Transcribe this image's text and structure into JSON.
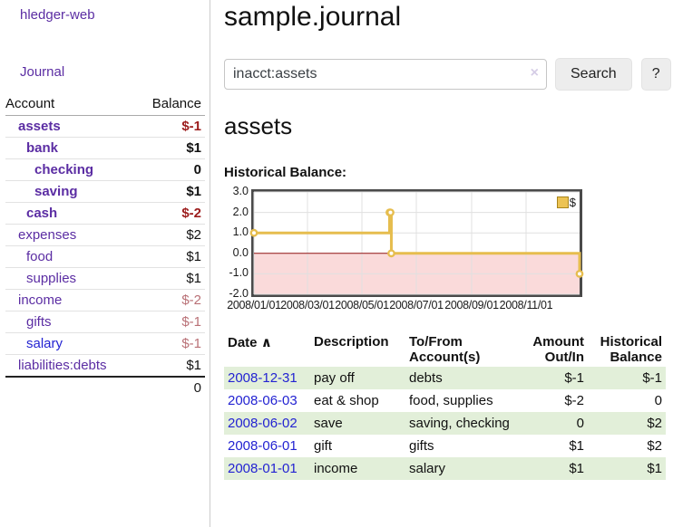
{
  "app": {
    "brand": "hledger-web"
  },
  "sidebar": {
    "nav": {
      "journal": "Journal"
    },
    "accounts_table": {
      "headers": {
        "account": "Account",
        "balance": "Balance"
      },
      "accounts": [
        {
          "name": "assets",
          "level": 1,
          "in_query": true,
          "balance": "$-1",
          "balance_tone": "neg-strong",
          "link_tone": ""
        },
        {
          "name": "bank",
          "level": 2,
          "in_query": true,
          "balance": "$1",
          "balance_tone": "",
          "link_tone": ""
        },
        {
          "name": "checking",
          "level": 3,
          "in_query": true,
          "balance": "0",
          "balance_tone": "",
          "link_tone": ""
        },
        {
          "name": "saving",
          "level": 3,
          "in_query": true,
          "balance": "$1",
          "balance_tone": "",
          "link_tone": ""
        },
        {
          "name": "cash",
          "level": 2,
          "in_query": true,
          "balance": "$-2",
          "balance_tone": "neg-strong",
          "link_tone": ""
        },
        {
          "name": "expenses",
          "level": 1,
          "in_query": false,
          "balance": "$2",
          "balance_tone": "",
          "link_tone": ""
        },
        {
          "name": "food",
          "level": 2,
          "in_query": false,
          "balance": "$1",
          "balance_tone": "",
          "link_tone": ""
        },
        {
          "name": "supplies",
          "level": 2,
          "in_query": false,
          "balance": "$1",
          "balance_tone": "",
          "link_tone": ""
        },
        {
          "name": "income",
          "level": 1,
          "in_query": false,
          "balance": "$-2",
          "balance_tone": "neg-soft",
          "link_tone": ""
        },
        {
          "name": "gifts",
          "level": 2,
          "in_query": false,
          "balance": "$-1",
          "balance_tone": "neg-soft",
          "link_tone": ""
        },
        {
          "name": "salary",
          "level": 2,
          "in_query": false,
          "balance": "$-1",
          "balance_tone": "neg-soft",
          "link_tone": "fresh"
        },
        {
          "name": "liabilities:debts",
          "level": 1,
          "in_query": false,
          "balance": "$1",
          "balance_tone": "",
          "link_tone": ""
        }
      ],
      "total": "0"
    }
  },
  "main": {
    "title": "sample.journal",
    "search": {
      "value": "inacct:assets",
      "clear_icon": "×",
      "search_button": "Search",
      "help_button": "?"
    },
    "account_heading": "assets",
    "chart_title": "Historical Balance:"
  },
  "chart_data": {
    "type": "line",
    "subtype": "step",
    "title": "Historical Balance:",
    "x_range": [
      "2008-01-01",
      "2008-12-31"
    ],
    "ylim": [
      -2,
      3
    ],
    "y_ticks": [
      3.0,
      2.0,
      1.0,
      0.0,
      -1.0,
      -2.0
    ],
    "x_ticks": [
      "2008/01/01",
      "2008/03/01",
      "2008/05/01",
      "2008/07/01",
      "2008/09/01",
      "2008/11/01"
    ],
    "grid": true,
    "legend": {
      "label": "$",
      "position": "top-right"
    },
    "series": [
      {
        "name": "$",
        "color": "#e6bd4e",
        "points": [
          {
            "date": "2008-01-01",
            "value": 1
          },
          {
            "date": "2008-06-01",
            "value": 2
          },
          {
            "date": "2008-06-02",
            "value": 2
          },
          {
            "date": "2008-06-03",
            "value": 0
          },
          {
            "date": "2008-12-31",
            "value": -1
          }
        ]
      }
    ],
    "negative_region_color": "#fadada",
    "zero_line_color": "#951414",
    "grid_color": "#e0e0e0"
  },
  "register": {
    "columns": [
      {
        "label": "Date"
      },
      {
        "label": "Description"
      },
      {
        "label": "To/From Account(s)"
      },
      {
        "label": "Amount Out/In"
      },
      {
        "label": "Historical Balance"
      }
    ],
    "sort_icon": "∧",
    "rows": [
      {
        "date": "2008-12-31",
        "description": "pay off",
        "accounts": "debts",
        "amount": "$-1",
        "balance": "$-1",
        "amount_negative": true,
        "balance_negative": true,
        "shaded": true
      },
      {
        "date": "2008-06-03",
        "description": "eat & shop",
        "accounts": "food, supplies",
        "amount": "$-2",
        "balance": "0",
        "amount_negative": true,
        "balance_negative": false,
        "shaded": false
      },
      {
        "date": "2008-06-02",
        "description": "save",
        "accounts": "saving, checking",
        "amount": "0",
        "balance": "$2",
        "amount_negative": false,
        "balance_negative": false,
        "shaded": true
      },
      {
        "date": "2008-06-01",
        "description": "gift",
        "accounts": "gifts",
        "amount": "$1",
        "balance": "$2",
        "amount_negative": false,
        "balance_negative": false,
        "shaded": false
      },
      {
        "date": "2008-01-01",
        "description": "income",
        "accounts": "salary",
        "amount": "$1",
        "balance": "$1",
        "amount_negative": false,
        "balance_negative": false,
        "shaded": true
      }
    ]
  }
}
